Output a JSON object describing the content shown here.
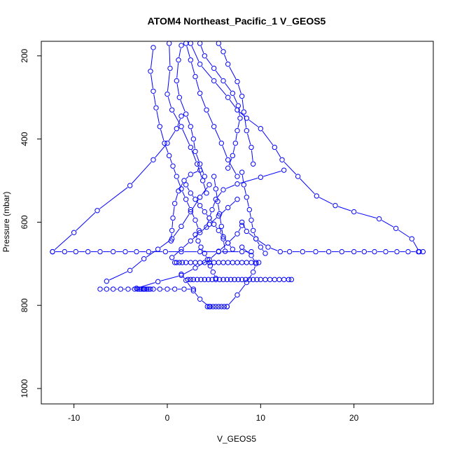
{
  "chart_data": {
    "type": "line",
    "title": "ATOM4 Northeast_Pacific_1 V_GEOS5",
    "xlabel": "V_GEOS5",
    "ylabel": "Pressure (mbar)",
    "xlim": [
      -13.5,
      28.5
    ],
    "ylim": [
      1037,
      165
    ],
    "y_reversed": true,
    "x_ticks": [
      -10,
      0,
      10,
      20
    ],
    "y_ticks": [
      200,
      400,
      600,
      800,
      1000
    ],
    "marker": "open-circle",
    "color": "#0000ff",
    "grid": false,
    "legend": "none",
    "series": [
      {
        "x": [
          -12.3,
          -10.0,
          -7.5,
          -4.0,
          -1.5,
          0.0,
          1.0,
          1.5
        ],
        "y": [
          671,
          625,
          572,
          512,
          450,
          410,
          375,
          345
        ]
      },
      {
        "x": [
          -12.3,
          -11.0,
          -9.8,
          -8.5,
          -7.2,
          -5.8,
          -4.5,
          -3.3,
          -2.0,
          -0.2,
          1.5,
          3.5,
          5.5,
          8.0,
          9.0
        ],
        "y": [
          671,
          671,
          671,
          671,
          671,
          671,
          671,
          671,
          671,
          671,
          671,
          671,
          671,
          671,
          671
        ]
      },
      {
        "x": [
          8.0,
          8.5,
          9.5,
          10.8,
          12.1,
          13.1,
          14.5,
          15.9,
          17.3,
          18.7,
          20.0,
          21.1,
          22.2,
          23.4,
          24.6,
          25.8,
          26.9,
          27.4
        ],
        "y": [
          600,
          622,
          640,
          660,
          671,
          671,
          671,
          671,
          671,
          671,
          671,
          671,
          671,
          671,
          671,
          671,
          671,
          671
        ]
      },
      {
        "x": [
          -7.2,
          -6.5,
          -5.8,
          -5.0,
          -4.2,
          -3.5,
          -2.5,
          -1.5,
          -0.8,
          0.0,
          0.8,
          1.8,
          2.8
        ],
        "y": [
          761,
          761,
          761,
          761,
          761,
          761,
          761,
          761,
          761,
          761,
          761,
          761,
          761
        ]
      },
      {
        "x": [
          -3.2,
          -3.0,
          -2.8,
          -2.6,
          -2.4,
          -2.2,
          -2.0,
          -1.8
        ],
        "y": [
          761,
          761,
          761,
          761,
          761,
          761,
          761,
          761
        ]
      },
      {
        "x": [
          -6.5,
          -4.0,
          -2.5,
          -1.0,
          0.5,
          1.5,
          2.5,
          3.5,
          4.5
        ],
        "y": [
          742,
          716,
          688,
          665,
          640,
          610,
          575,
          540,
          510
        ]
      },
      {
        "x": [
          2.2,
          2.5,
          2.8,
          3.2,
          3.6,
          4.0,
          4.4,
          4.8,
          5.2,
          5.6,
          6.0,
          6.4,
          6.8,
          7.2,
          7.6,
          8.0,
          8.4,
          8.8,
          9.2,
          9.6,
          10.0,
          10.5,
          11.0,
          11.5,
          12.0,
          12.5,
          13.0,
          13.3
        ],
        "y": [
          738,
          738,
          738,
          738,
          738,
          738,
          738,
          738,
          738,
          738,
          738,
          738,
          738,
          738,
          738,
          738,
          738,
          738,
          738,
          738,
          738,
          738,
          738,
          738,
          738,
          738,
          738,
          738
        ]
      },
      {
        "x": [
          0.8,
          1.0,
          1.3,
          1.6,
          2.0,
          2.5,
          3.0,
          3.5,
          4.0,
          4.5,
          5.0,
          5.5,
          6.0,
          6.5,
          7.0,
          7.5,
          8.0,
          8.5,
          9.0,
          9.5,
          9.8
        ],
        "y": [
          697,
          697,
          697,
          697,
          697,
          697,
          697,
          697,
          697,
          697,
          697,
          697,
          697,
          697,
          697,
          697,
          697,
          697,
          697,
          697,
          697
        ]
      },
      {
        "x": [
          4.3,
          4.6,
          4.9,
          5.2,
          5.5,
          5.8,
          6.1,
          6.4
        ],
        "y": [
          803,
          803,
          803,
          803,
          803,
          803,
          803,
          803
        ]
      },
      {
        "x": [
          4.5,
          3.5,
          2.8,
          2.0,
          1.5
        ],
        "y": [
          803,
          785,
          765,
          740,
          725
        ]
      },
      {
        "x": [
          6.4,
          7.5,
          8.5,
          9.2,
          9.5,
          9.0,
          8.0
        ],
        "y": [
          803,
          775,
          745,
          720,
          700,
          680,
          660
        ]
      },
      {
        "x": [
          1.5,
          1.2,
          1.0,
          1.3,
          2.0,
          2.5,
          2.8,
          3.0,
          3.5,
          4.0
        ],
        "y": [
          175,
          210,
          260,
          300,
          340,
          370,
          400,
          430,
          460,
          490
        ]
      },
      {
        "x": [
          -1.5,
          -1.8,
          -1.5,
          -1.2,
          -0.8,
          -0.3,
          0.2,
          0.6,
          1.0,
          1.5,
          2.0,
          2.5,
          3.0,
          3.4
        ],
        "y": [
          180,
          237,
          285,
          325,
          370,
          410,
          440,
          465,
          490,
          520,
          545,
          570,
          595,
          620
        ]
      },
      {
        "x": [
          0.2,
          0.3,
          0.0,
          0.5,
          1.5,
          2.5,
          3.2,
          3.8,
          4.2
        ],
        "y": [
          170,
          230,
          292,
          330,
          370,
          420,
          460,
          500,
          530
        ]
      },
      {
        "x": [
          2.0,
          2.5,
          3.0,
          3.5,
          4.2,
          5.0,
          5.8,
          6.5,
          7.5
        ],
        "y": [
          170,
          210,
          250,
          290,
          330,
          370,
          410,
          450,
          490
        ]
      },
      {
        "x": [
          3.5,
          4.0,
          5.0,
          6.0,
          7.0,
          7.6,
          7.8,
          7.5,
          7.3,
          7.0,
          6.5
        ],
        "y": [
          170,
          200,
          230,
          260,
          290,
          320,
          350,
          380,
          410,
          440,
          470
        ]
      },
      {
        "x": [
          5.5,
          6.0,
          6.5,
          7.5,
          8.0,
          8.2,
          8.5,
          9.0,
          9.2
        ],
        "y": [
          170,
          190,
          220,
          262,
          297,
          335,
          380,
          420,
          460
        ]
      },
      {
        "x": [
          2.5,
          3.5,
          5.0,
          6.5,
          7.5,
          8.5,
          10.0,
          11.5,
          12.3,
          14.0,
          16.0,
          18.0,
          20.0,
          22.7,
          24.5,
          26.2,
          27.0
        ],
        "y": [
          170,
          220,
          260,
          300,
          330,
          350,
          375,
          420,
          450,
          490,
          537,
          560,
          575,
          592,
          615,
          640,
          671
        ]
      },
      {
        "x": [
          8.0,
          8.2,
          8.5,
          8.8,
          9.0,
          9.2,
          9.5,
          10.0,
          10.5
        ],
        "y": [
          480,
          510,
          540,
          570,
          595,
          620,
          640,
          660,
          675
        ]
      },
      {
        "x": [
          12.5,
          10.0,
          7.5,
          6.0,
          5.2,
          4.8,
          4.5,
          4.2
        ],
        "y": [
          475,
          492,
          508,
          522,
          545,
          570,
          590,
          612
        ]
      },
      {
        "x": [
          3.5,
          2.5,
          1.8,
          1.2,
          0.8,
          0.6,
          0.5,
          0.4
        ],
        "y": [
          475,
          485,
          500,
          525,
          555,
          590,
          620,
          645
        ]
      },
      {
        "x": [
          -3.3,
          -1.0,
          1.5,
          3.0,
          4.5,
          5.5,
          6.5,
          7.5,
          8.0
        ],
        "y": [
          759,
          743,
          728,
          710,
          690,
          670,
          650,
          628,
          608
        ]
      },
      {
        "x": [
          2.0,
          2.5,
          3.0,
          3.5,
          4.0,
          4.5,
          5.0,
          5.5,
          6.0,
          6.5,
          7.0
        ],
        "y": [
          510,
          530,
          545,
          560,
          575,
          590,
          605,
          620,
          635,
          650,
          665
        ]
      },
      {
        "x": [
          3.0,
          3.3,
          3.6,
          4.0,
          4.3,
          4.6,
          4.9,
          5.2
        ],
        "y": [
          630,
          645,
          660,
          675,
          690,
          705,
          720,
          735
        ]
      },
      {
        "x": [
          5.0,
          5.2,
          5.4,
          5.6,
          5.8,
          6.0,
          6.2
        ],
        "y": [
          490,
          520,
          550,
          580,
          610,
          640,
          670
        ]
      },
      {
        "x": [
          7.5,
          6.5,
          5.5,
          4.5,
          3.5,
          2.5,
          1.5,
          0.5
        ],
        "y": [
          545,
          565,
          585,
          605,
          625,
          645,
          665,
          685
        ]
      }
    ]
  }
}
